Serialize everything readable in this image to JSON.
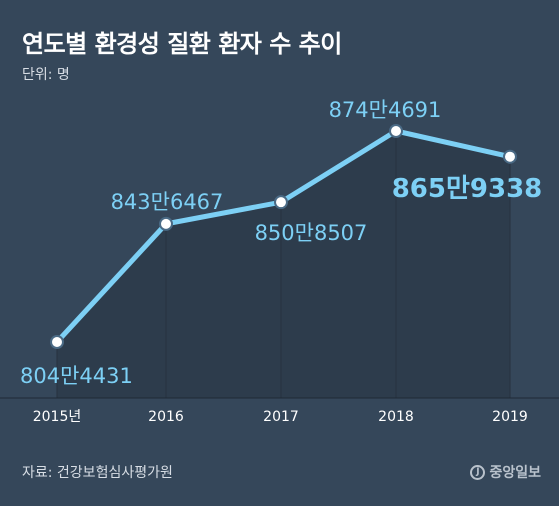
{
  "header": {
    "title": "연도별 환경성 질환 환자 수 추이",
    "unit": "단위: 명"
  },
  "footer": {
    "source": "자료: 건강보험심사평가원",
    "logo_text": "중앙일보",
    "logo_mark": "J"
  },
  "colors": {
    "background": "#35475a",
    "line": "#7dd0f5",
    "area": "#2d3c4c",
    "label": "#7dd0f5",
    "highlight_label": "#7dd0f5",
    "axis_text": "#ffffff"
  },
  "chart_data": {
    "type": "line",
    "categories": [
      "2015년",
      "2016",
      "2017",
      "2018",
      "2019"
    ],
    "values": [
      8044431,
      8436467,
      8508507,
      8744691,
      8659338
    ],
    "labels": [
      "804만4431",
      "843만6467",
      "850만8507",
      "874만4691",
      "865만9338"
    ],
    "highlight_index": 4,
    "title": "연도별 환경성 질환 환자 수 추이",
    "ylabel": "",
    "xlabel": "",
    "grid": false,
    "legend": "none"
  }
}
